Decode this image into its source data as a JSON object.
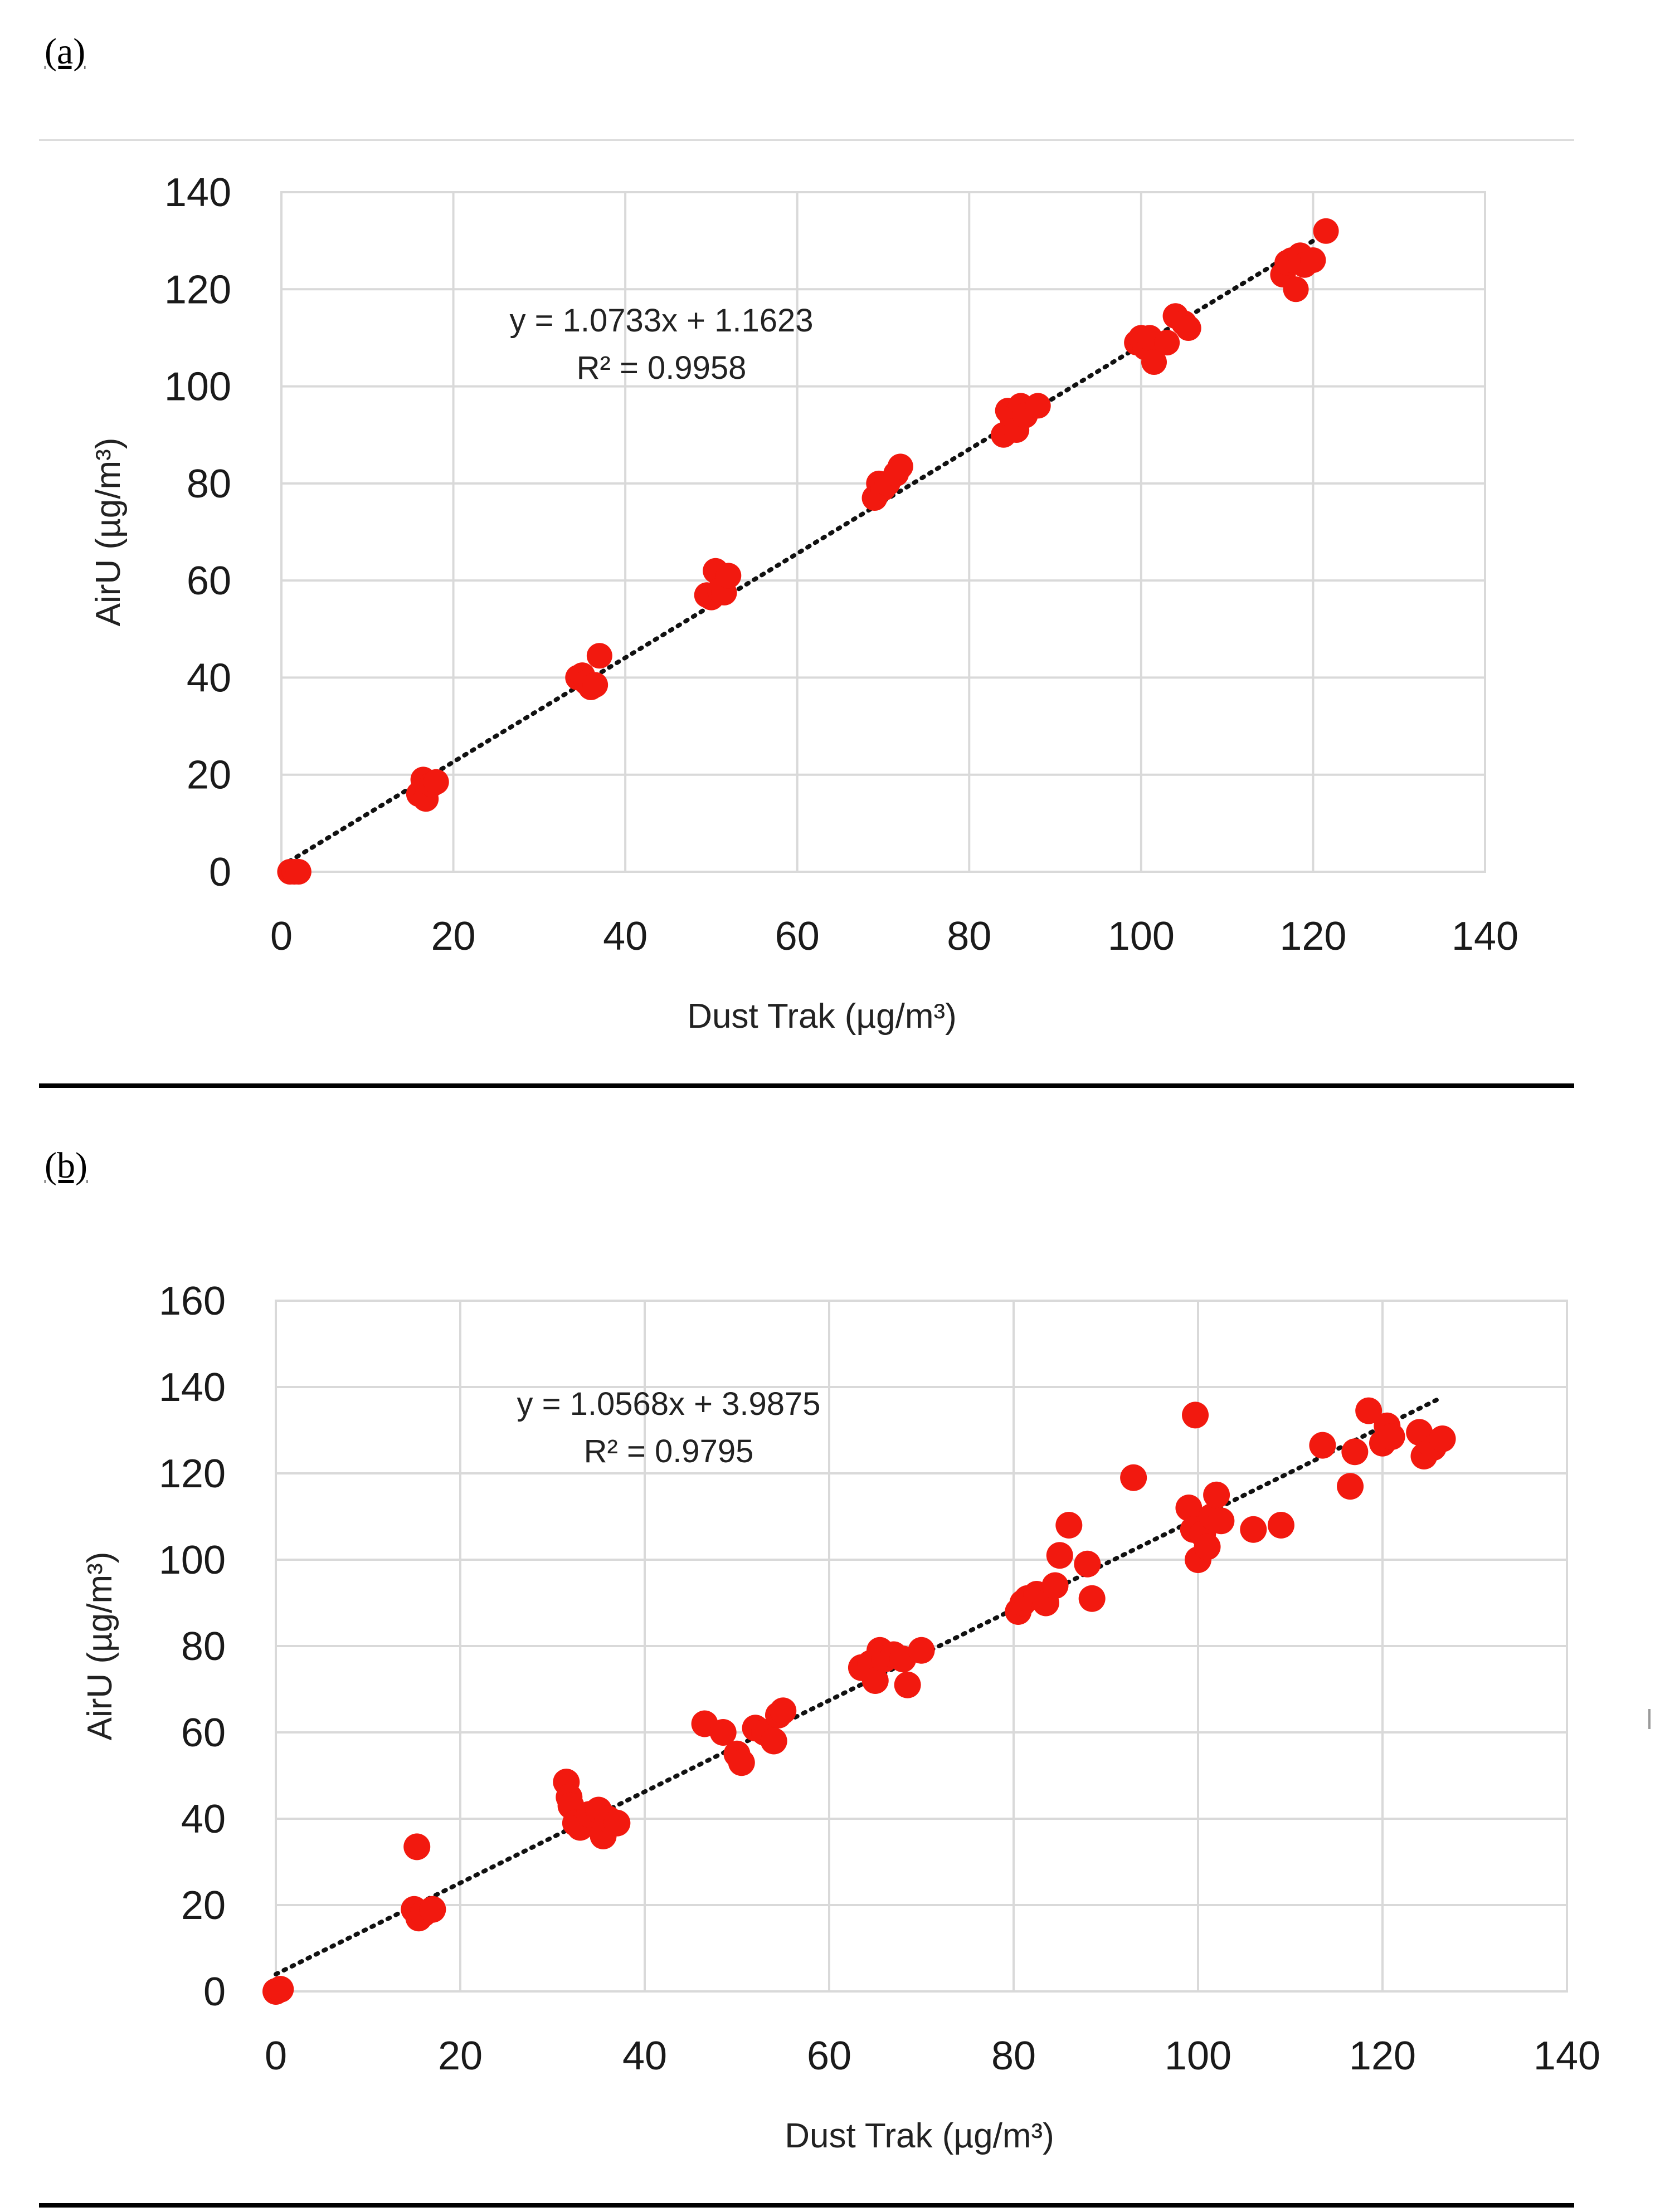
{
  "colors": {
    "marker": "#f2190f",
    "grid": "#d9d9d9",
    "trend": "#111111"
  },
  "chart_data": [
    {
      "panel": "(a)",
      "type": "scatter",
      "xlabel": "Dust Trak (µg/m³)",
      "ylabel": "AirU (µg/m³)",
      "xlim": [
        0,
        140
      ],
      "ylim": [
        0,
        140
      ],
      "x_ticks": [
        0,
        20,
        40,
        60,
        80,
        100,
        120,
        140
      ],
      "y_ticks": [
        0,
        20,
        40,
        60,
        80,
        100,
        120,
        140
      ],
      "grid": true,
      "trendline": {
        "slope": 1.0733,
        "intercept": 1.1623,
        "x_range": [
          0,
          122
        ],
        "style": "dotted"
      },
      "equation": "y = 1.0733x + 1.1623",
      "r_squared": "R² = 0.9958",
      "points": [
        [
          1,
          0
        ],
        [
          1.5,
          0
        ],
        [
          2,
          0
        ],
        [
          16,
          16
        ],
        [
          16.5,
          19
        ],
        [
          16.8,
          15
        ],
        [
          17.5,
          18
        ],
        [
          18,
          18.5
        ],
        [
          34.5,
          40
        ],
        [
          35,
          40.5
        ],
        [
          35.5,
          39
        ],
        [
          36,
          38
        ],
        [
          36.5,
          38.5
        ],
        [
          37,
          44.5
        ],
        [
          49.5,
          57
        ],
        [
          50,
          56.5
        ],
        [
          50.5,
          62
        ],
        [
          51,
          58
        ],
        [
          51.5,
          57.5
        ],
        [
          52,
          61
        ],
        [
          69,
          77
        ],
        [
          69.5,
          80
        ],
        [
          70,
          79
        ],
        [
          70.5,
          80
        ],
        [
          71.5,
          82
        ],
        [
          72,
          83.5
        ],
        [
          84,
          90
        ],
        [
          84.5,
          95
        ],
        [
          85,
          93.5
        ],
        [
          85.5,
          91
        ],
        [
          86,
          96
        ],
        [
          86.5,
          94
        ],
        [
          88,
          96
        ],
        [
          99.5,
          109
        ],
        [
          100,
          110
        ],
        [
          100.5,
          108
        ],
        [
          101,
          110
        ],
        [
          101.5,
          105
        ],
        [
          103,
          109
        ],
        [
          104,
          114.5
        ],
        [
          105,
          113
        ],
        [
          105.5,
          112
        ],
        [
          116.5,
          123
        ],
        [
          117,
          125.5
        ],
        [
          117.5,
          126
        ],
        [
          118,
          120
        ],
        [
          118.5,
          127
        ],
        [
          119,
          125
        ],
        [
          120,
          126
        ],
        [
          121.5,
          132
        ]
      ]
    },
    {
      "panel": "(b)",
      "type": "scatter",
      "xlabel": "Dust Trak (µg/m³)",
      "ylabel": "AirU (µg/m³)",
      "xlim": [
        0,
        140
      ],
      "ylim": [
        0,
        160
      ],
      "x_ticks": [
        0,
        20,
        40,
        60,
        80,
        100,
        120,
        140
      ],
      "y_ticks": [
        0,
        20,
        40,
        60,
        80,
        100,
        120,
        140,
        160
      ],
      "grid": true,
      "trendline": {
        "slope": 1.0568,
        "intercept": 3.9875,
        "x_range": [
          0,
          126
        ],
        "style": "dotted"
      },
      "equation": "y = 1.0568x + 3.9875",
      "r_squared": "R² = 0.9795",
      "points": [
        [
          0,
          0
        ],
        [
          0.5,
          0.5
        ],
        [
          15,
          19
        ],
        [
          15.3,
          33.5
        ],
        [
          15.5,
          17
        ],
        [
          16,
          18
        ],
        [
          17,
          19
        ],
        [
          31.5,
          48.5
        ],
        [
          31.8,
          45
        ],
        [
          32,
          43
        ],
        [
          32.5,
          39
        ],
        [
          33,
          38
        ],
        [
          34,
          41
        ],
        [
          35,
          42
        ],
        [
          35.5,
          36
        ],
        [
          36,
          40
        ],
        [
          37,
          39
        ],
        [
          46.5,
          62
        ],
        [
          48.5,
          60
        ],
        [
          50,
          55
        ],
        [
          50.5,
          53
        ],
        [
          52,
          61
        ],
        [
          53,
          60
        ],
        [
          54,
          58
        ],
        [
          54.5,
          64
        ],
        [
          55,
          65
        ],
        [
          63.5,
          75
        ],
        [
          64.5,
          76
        ],
        [
          65,
          72
        ],
        [
          65.5,
          79
        ],
        [
          66,
          77
        ],
        [
          67,
          78
        ],
        [
          68,
          77
        ],
        [
          68.5,
          71
        ],
        [
          70,
          79
        ],
        [
          80.5,
          88
        ],
        [
          81,
          90
        ],
        [
          81.5,
          91
        ],
        [
          82.5,
          92
        ],
        [
          83.5,
          90
        ],
        [
          84.5,
          94
        ],
        [
          85,
          101
        ],
        [
          86,
          108
        ],
        [
          88,
          99
        ],
        [
          88.5,
          91
        ],
        [
          93,
          119
        ],
        [
          99,
          112
        ],
        [
          99.5,
          107
        ],
        [
          99.7,
          133.5
        ],
        [
          100,
          100
        ],
        [
          100.5,
          106
        ],
        [
          101,
          103
        ],
        [
          101.5,
          110
        ],
        [
          102,
          115
        ],
        [
          102.5,
          109
        ],
        [
          106,
          107
        ],
        [
          109,
          108
        ],
        [
          113.5,
          126.5
        ],
        [
          116.5,
          117
        ],
        [
          117,
          125
        ],
        [
          118.5,
          134.5
        ],
        [
          120,
          127
        ],
        [
          120.5,
          131
        ],
        [
          121,
          128.5
        ],
        [
          124,
          129.5
        ],
        [
          124.5,
          124
        ],
        [
          125.5,
          126
        ],
        [
          126.5,
          128
        ]
      ]
    }
  ]
}
